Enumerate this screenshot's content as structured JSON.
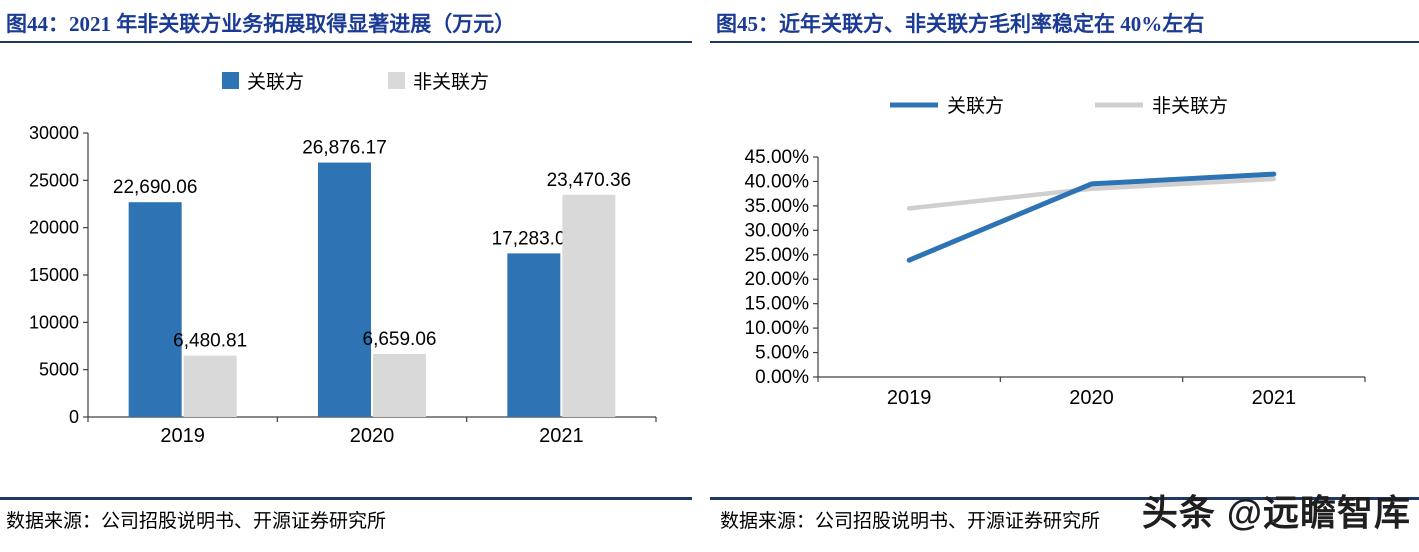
{
  "watermark": "头条 @远瞻智库",
  "colors": {
    "title_blue": "#1A3A94",
    "rule_navy": "#203864",
    "series_blue": "#2E74B5",
    "series_gray": "#D9D9D9",
    "line_gray": "#D0CECE",
    "axis": "#404040",
    "text": "#000000"
  },
  "chart_data": [
    {
      "id": "fig44",
      "type": "bar",
      "title": "图44：2021 年非关联方业务拓展取得显著进展（万元）",
      "source": "数据来源：公司招股说明书、开源证券研究所",
      "categories": [
        "2019",
        "2020",
        "2021"
      ],
      "series": [
        {
          "name": "关联方",
          "color": "#2E74B5",
          "values": [
            22690.06,
            26876.17,
            17283.05
          ],
          "labels": [
            "22,690.06",
            "26,876.17",
            "17,283.05"
          ]
        },
        {
          "name": "非关联方",
          "color": "#D9D9D9",
          "values": [
            6480.81,
            6659.06,
            23470.36
          ],
          "labels": [
            "6,480.81",
            "6,659.06",
            "23,470.36"
          ]
        }
      ],
      "ylim": [
        0,
        30000
      ],
      "ytick_step": 5000,
      "ytick_labels": [
        "0",
        "5000",
        "10000",
        "15000",
        "20000",
        "25000",
        "30000"
      ],
      "legend_position": "top",
      "grid": false
    },
    {
      "id": "fig45",
      "type": "line",
      "title": "图45：近年关联方、非关联方毛利率稳定在 40%左右",
      "source": "数据来源：公司招股说明书、开源证券研究所",
      "categories": [
        "2019",
        "2020",
        "2021"
      ],
      "series": [
        {
          "name": "关联方",
          "color": "#2E74B5",
          "values": [
            23.9,
            39.5,
            41.5
          ]
        },
        {
          "name": "非关联方",
          "color": "#D0CECE",
          "values": [
            34.5,
            38.5,
            40.5
          ]
        }
      ],
      "unit": "%",
      "ylim": [
        0,
        45
      ],
      "ytick_step": 5,
      "ytick_format": "percent2",
      "legend_position": "top",
      "grid": false
    }
  ]
}
